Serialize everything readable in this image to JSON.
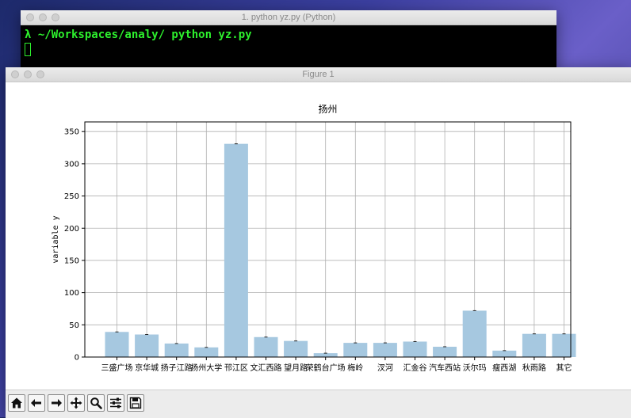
{
  "terminal": {
    "title": "1. python yz.py (Python)",
    "command": "λ ~/Workspaces/analy/ python yz.py"
  },
  "figure": {
    "title": "Figure 1"
  },
  "toolbar": {
    "buttons": [
      "home-icon",
      "back-arrow-icon",
      "forward-arrow-icon",
      "pan-icon",
      "zoom-icon",
      "configure-subplots-icon",
      "save-icon"
    ]
  },
  "chart_data": {
    "type": "bar",
    "title": "扬州",
    "xlabel": "",
    "ylabel": "variable y",
    "categories": [
      "三盛广场",
      "京华城",
      "扬子江路",
      "扬州大学",
      "邗江区",
      "文汇西路",
      "望月路",
      "荣鹤台广场",
      "梅岭",
      "汊河",
      "汇金谷",
      "汽车西站",
      "沃尔玛",
      "瘦西湖",
      "秋雨路",
      "其它"
    ],
    "values": [
      39,
      35,
      21,
      15,
      331,
      31,
      25,
      6,
      22,
      22,
      24,
      16,
      72,
      10,
      36,
      36
    ],
    "yticks": [
      0,
      50,
      100,
      150,
      200,
      250,
      300,
      350
    ],
    "ylim": [
      0,
      365
    ],
    "grid": true,
    "bar_color": "#a6c8e0"
  }
}
